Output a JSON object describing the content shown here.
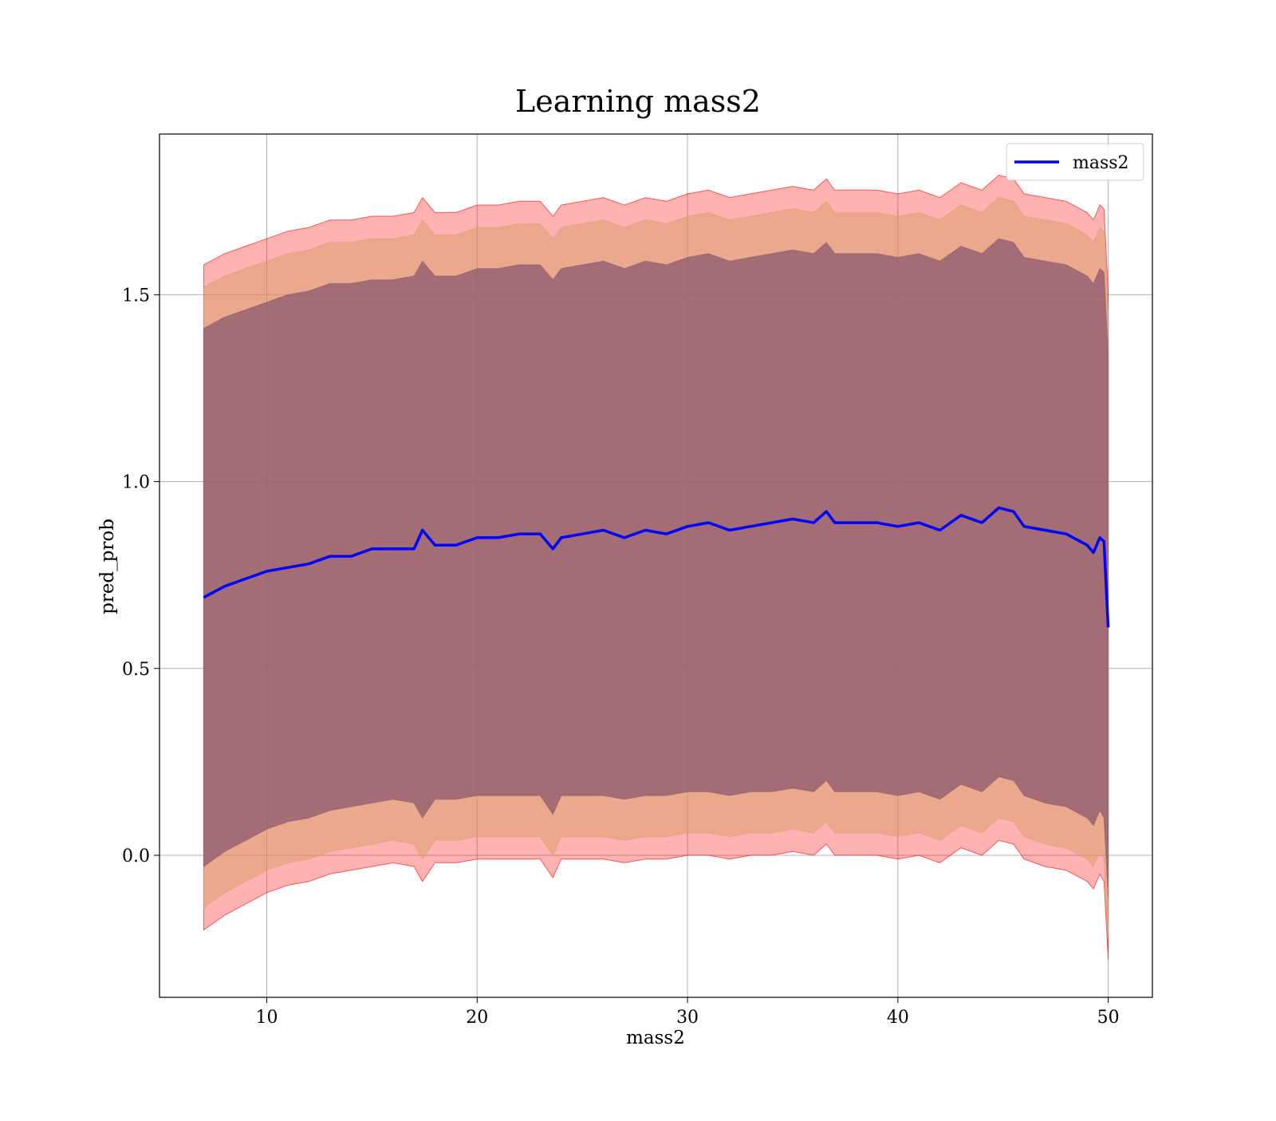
{
  "chart_data": {
    "type": "line",
    "title": "Learning mass2",
    "xlabel": "mass2",
    "ylabel": "pred_prob",
    "xlim": [
      4.9,
      52.1
    ],
    "ylim": [
      -0.38,
      1.93
    ],
    "x_ticks": [
      10,
      20,
      30,
      40,
      50
    ],
    "y_ticks": [
      0.0,
      0.5,
      1.0,
      1.5
    ],
    "x_tick_labels": [
      "10",
      "20",
      "30",
      "40",
      "50"
    ],
    "y_tick_labels": [
      "0.0",
      "0.5",
      "1.0",
      "1.5"
    ],
    "grid": true,
    "legend": {
      "position": "top-right",
      "entries": [
        "mass2"
      ]
    },
    "colors": {
      "line": "#0000ff",
      "band_outer": "#ff0000",
      "band_middle": "#d8a070",
      "band_inner": "#8c5a6e"
    },
    "x": [
      7,
      8,
      9,
      10,
      11,
      12,
      13,
      14,
      15,
      16,
      17,
      17.4,
      18,
      19,
      20,
      21,
      22,
      23,
      23.6,
      24,
      25,
      26,
      27,
      28,
      29,
      30,
      31,
      32,
      33,
      34,
      35,
      36,
      36.6,
      37,
      38,
      39,
      40,
      41,
      42,
      43,
      44,
      44.8,
      45.5,
      46,
      47,
      48,
      49,
      49.3,
      49.6,
      49.8,
      50
    ],
    "series": [
      {
        "name": "mass2",
        "values": [
          0.69,
          0.72,
          0.74,
          0.76,
          0.77,
          0.78,
          0.8,
          0.8,
          0.82,
          0.82,
          0.82,
          0.87,
          0.83,
          0.83,
          0.85,
          0.85,
          0.86,
          0.86,
          0.82,
          0.85,
          0.86,
          0.87,
          0.85,
          0.87,
          0.86,
          0.88,
          0.89,
          0.87,
          0.88,
          0.89,
          0.9,
          0.89,
          0.92,
          0.89,
          0.89,
          0.89,
          0.88,
          0.89,
          0.87,
          0.91,
          0.89,
          0.93,
          0.92,
          0.88,
          0.87,
          0.86,
          0.83,
          0.81,
          0.85,
          0.84,
          0.61
        ]
      }
    ],
    "bands": [
      {
        "lower": [
          -0.2,
          -0.16,
          -0.13,
          -0.1,
          -0.08,
          -0.07,
          -0.05,
          -0.04,
          -0.03,
          -0.02,
          -0.03,
          -0.07,
          -0.02,
          -0.02,
          -0.01,
          -0.01,
          -0.01,
          -0.01,
          -0.06,
          -0.01,
          -0.01,
          -0.01,
          -0.02,
          -0.01,
          -0.01,
          0.0,
          0.0,
          -0.01,
          0.0,
          0.0,
          0.01,
          0.0,
          0.03,
          0.0,
          0.0,
          0.0,
          -0.01,
          0.0,
          -0.02,
          0.02,
          0.0,
          0.04,
          0.03,
          -0.01,
          -0.03,
          -0.04,
          -0.07,
          -0.09,
          -0.05,
          -0.07,
          -0.28
        ],
        "upper": [
          1.58,
          1.61,
          1.63,
          1.65,
          1.67,
          1.68,
          1.7,
          1.7,
          1.71,
          1.71,
          1.72,
          1.76,
          1.72,
          1.72,
          1.74,
          1.74,
          1.75,
          1.75,
          1.71,
          1.74,
          1.75,
          1.76,
          1.74,
          1.76,
          1.75,
          1.77,
          1.78,
          1.76,
          1.77,
          1.78,
          1.79,
          1.78,
          1.81,
          1.78,
          1.78,
          1.78,
          1.77,
          1.78,
          1.76,
          1.8,
          1.78,
          1.82,
          1.81,
          1.77,
          1.76,
          1.75,
          1.72,
          1.7,
          1.74,
          1.73,
          1.51
        ]
      },
      {
        "lower": [
          -0.14,
          -0.1,
          -0.07,
          -0.04,
          -0.02,
          -0.01,
          0.01,
          0.02,
          0.03,
          0.04,
          0.03,
          -0.01,
          0.04,
          0.04,
          0.05,
          0.05,
          0.05,
          0.05,
          0.0,
          0.05,
          0.05,
          0.05,
          0.04,
          0.05,
          0.05,
          0.06,
          0.06,
          0.05,
          0.06,
          0.06,
          0.07,
          0.06,
          0.09,
          0.06,
          0.06,
          0.06,
          0.05,
          0.06,
          0.04,
          0.08,
          0.06,
          0.1,
          0.09,
          0.05,
          0.03,
          0.02,
          -0.01,
          -0.03,
          0.01,
          -0.01,
          -0.22
        ],
        "upper": [
          1.52,
          1.55,
          1.57,
          1.59,
          1.61,
          1.62,
          1.64,
          1.64,
          1.65,
          1.65,
          1.66,
          1.7,
          1.66,
          1.66,
          1.68,
          1.68,
          1.69,
          1.69,
          1.65,
          1.68,
          1.69,
          1.7,
          1.68,
          1.7,
          1.69,
          1.71,
          1.72,
          1.7,
          1.71,
          1.72,
          1.73,
          1.72,
          1.75,
          1.72,
          1.72,
          1.72,
          1.71,
          1.72,
          1.7,
          1.74,
          1.72,
          1.76,
          1.75,
          1.71,
          1.7,
          1.69,
          1.66,
          1.64,
          1.68,
          1.67,
          1.45
        ]
      },
      {
        "lower": [
          -0.03,
          0.01,
          0.04,
          0.07,
          0.09,
          0.1,
          0.12,
          0.13,
          0.14,
          0.15,
          0.14,
          0.1,
          0.15,
          0.15,
          0.16,
          0.16,
          0.16,
          0.16,
          0.11,
          0.16,
          0.16,
          0.16,
          0.15,
          0.16,
          0.16,
          0.17,
          0.17,
          0.16,
          0.17,
          0.17,
          0.18,
          0.17,
          0.2,
          0.17,
          0.17,
          0.17,
          0.16,
          0.17,
          0.15,
          0.19,
          0.17,
          0.21,
          0.2,
          0.16,
          0.14,
          0.13,
          0.1,
          0.08,
          0.12,
          0.1,
          -0.11
        ],
        "upper": [
          1.41,
          1.44,
          1.46,
          1.48,
          1.5,
          1.51,
          1.53,
          1.53,
          1.54,
          1.54,
          1.55,
          1.59,
          1.55,
          1.55,
          1.57,
          1.57,
          1.58,
          1.58,
          1.54,
          1.57,
          1.58,
          1.59,
          1.57,
          1.59,
          1.58,
          1.6,
          1.61,
          1.59,
          1.6,
          1.61,
          1.62,
          1.61,
          1.64,
          1.61,
          1.61,
          1.61,
          1.6,
          1.61,
          1.59,
          1.63,
          1.61,
          1.65,
          1.64,
          1.6,
          1.59,
          1.58,
          1.55,
          1.53,
          1.57,
          1.56,
          1.34
        ]
      }
    ]
  }
}
